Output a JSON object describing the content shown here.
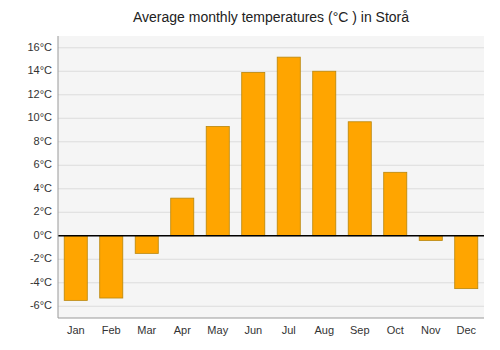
{
  "chart_data": {
    "type": "bar",
    "title": "Average monthly temperatures (°C ) in Storå",
    "categories": [
      "Jan",
      "Feb",
      "Mar",
      "Apr",
      "May",
      "Jun",
      "Jul",
      "Aug",
      "Sep",
      "Oct",
      "Nov",
      "Dec"
    ],
    "values": [
      -5.5,
      -5.3,
      -1.5,
      3.2,
      9.3,
      13.9,
      15.2,
      14.0,
      9.7,
      5.4,
      -0.4,
      -4.5
    ],
    "color": "#FFA500",
    "ylim": [
      -7,
      17
    ],
    "yticks": [
      {
        "value": -6,
        "label": "-6°C"
      },
      {
        "value": -4,
        "label": "-4°C"
      },
      {
        "value": -2,
        "label": "-2°C"
      },
      {
        "value": 0,
        "label": "0°C"
      },
      {
        "value": 2,
        "label": "2°C"
      },
      {
        "value": 4,
        "label": "4°C"
      },
      {
        "value": 6,
        "label": "6°C"
      },
      {
        "value": 8,
        "label": "8°C"
      },
      {
        "value": 10,
        "label": "10°C"
      },
      {
        "value": 12,
        "label": "12°C"
      },
      {
        "value": 14,
        "label": "14°C"
      },
      {
        "value": 16,
        "label": "16°C"
      }
    ],
    "grid": true
  }
}
